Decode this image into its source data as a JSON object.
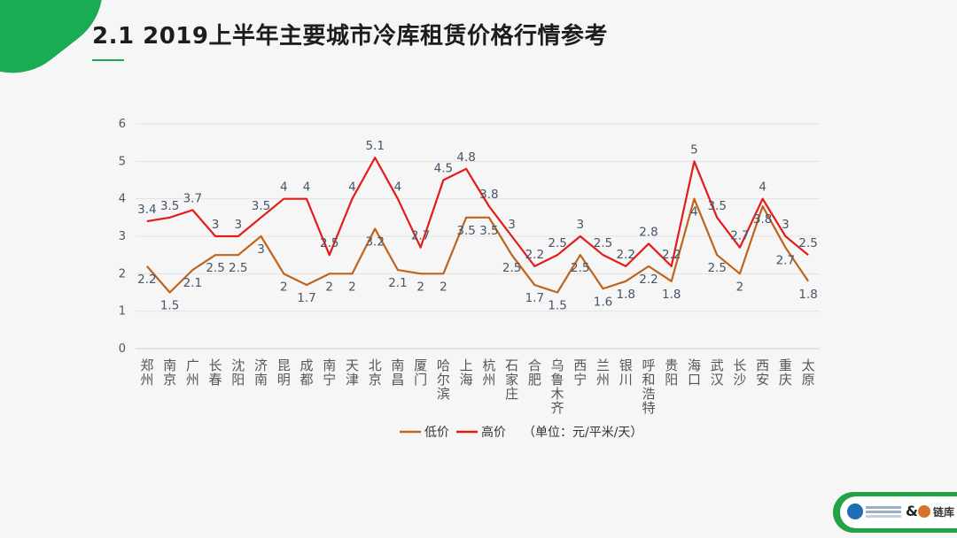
{
  "header": {
    "title": "2.1  2019上半年主要城市冷库租赁价格行情参考"
  },
  "chart_data": {
    "type": "line",
    "title": "",
    "xlabel": "",
    "ylabel": "",
    "ylim": [
      0,
      6
    ],
    "yticks": [
      "0",
      "1",
      "2",
      "3",
      "4",
      "5",
      "6"
    ],
    "grid": true,
    "legend_position": "bottom",
    "unit_note": "（单位：元/平米/天）",
    "categories": [
      "郑州",
      "南京",
      "广州",
      "长春",
      "沈阳",
      "济南",
      "昆明",
      "成都",
      "南宁",
      "天津",
      "北京",
      "南昌",
      "厦门",
      "哈尔滨",
      "上海",
      "杭州",
      "石家庄",
      "合肥",
      "乌鲁木齐",
      "西宁",
      "兰州",
      "银川",
      "呼和浩特",
      "贵阳",
      "海口",
      "武汉",
      "长沙",
      "西安",
      "重庆",
      "太原"
    ],
    "series": [
      {
        "name": "低价",
        "color": "#c0631b",
        "values": [
          2.2,
          1.5,
          2.1,
          2.5,
          2.5,
          3,
          2,
          1.7,
          2,
          2,
          3.2,
          2.1,
          2,
          2,
          3.5,
          3.5,
          2.5,
          1.7,
          1.5,
          2.5,
          1.6,
          1.8,
          2.2,
          1.8,
          4,
          2.5,
          2,
          3.8,
          2.7,
          1.8
        ]
      },
      {
        "name": "高价",
        "color": "#e41b17",
        "values": [
          3.4,
          3.5,
          3.7,
          3,
          3,
          3.5,
          4,
          4,
          2.5,
          4,
          5.1,
          4,
          2.7,
          4.5,
          4.8,
          3.8,
          3,
          2.2,
          2.5,
          3,
          2.5,
          2.2,
          2.8,
          2.2,
          5,
          3.5,
          2.7,
          4,
          3,
          2.5
        ]
      }
    ]
  },
  "footer": {
    "brand": "链库",
    "amp": "&"
  },
  "colors": {
    "accent": "#1aac52",
    "title": "#1d1d1d",
    "axis_text": "#555555",
    "label_text": "#44546a"
  }
}
